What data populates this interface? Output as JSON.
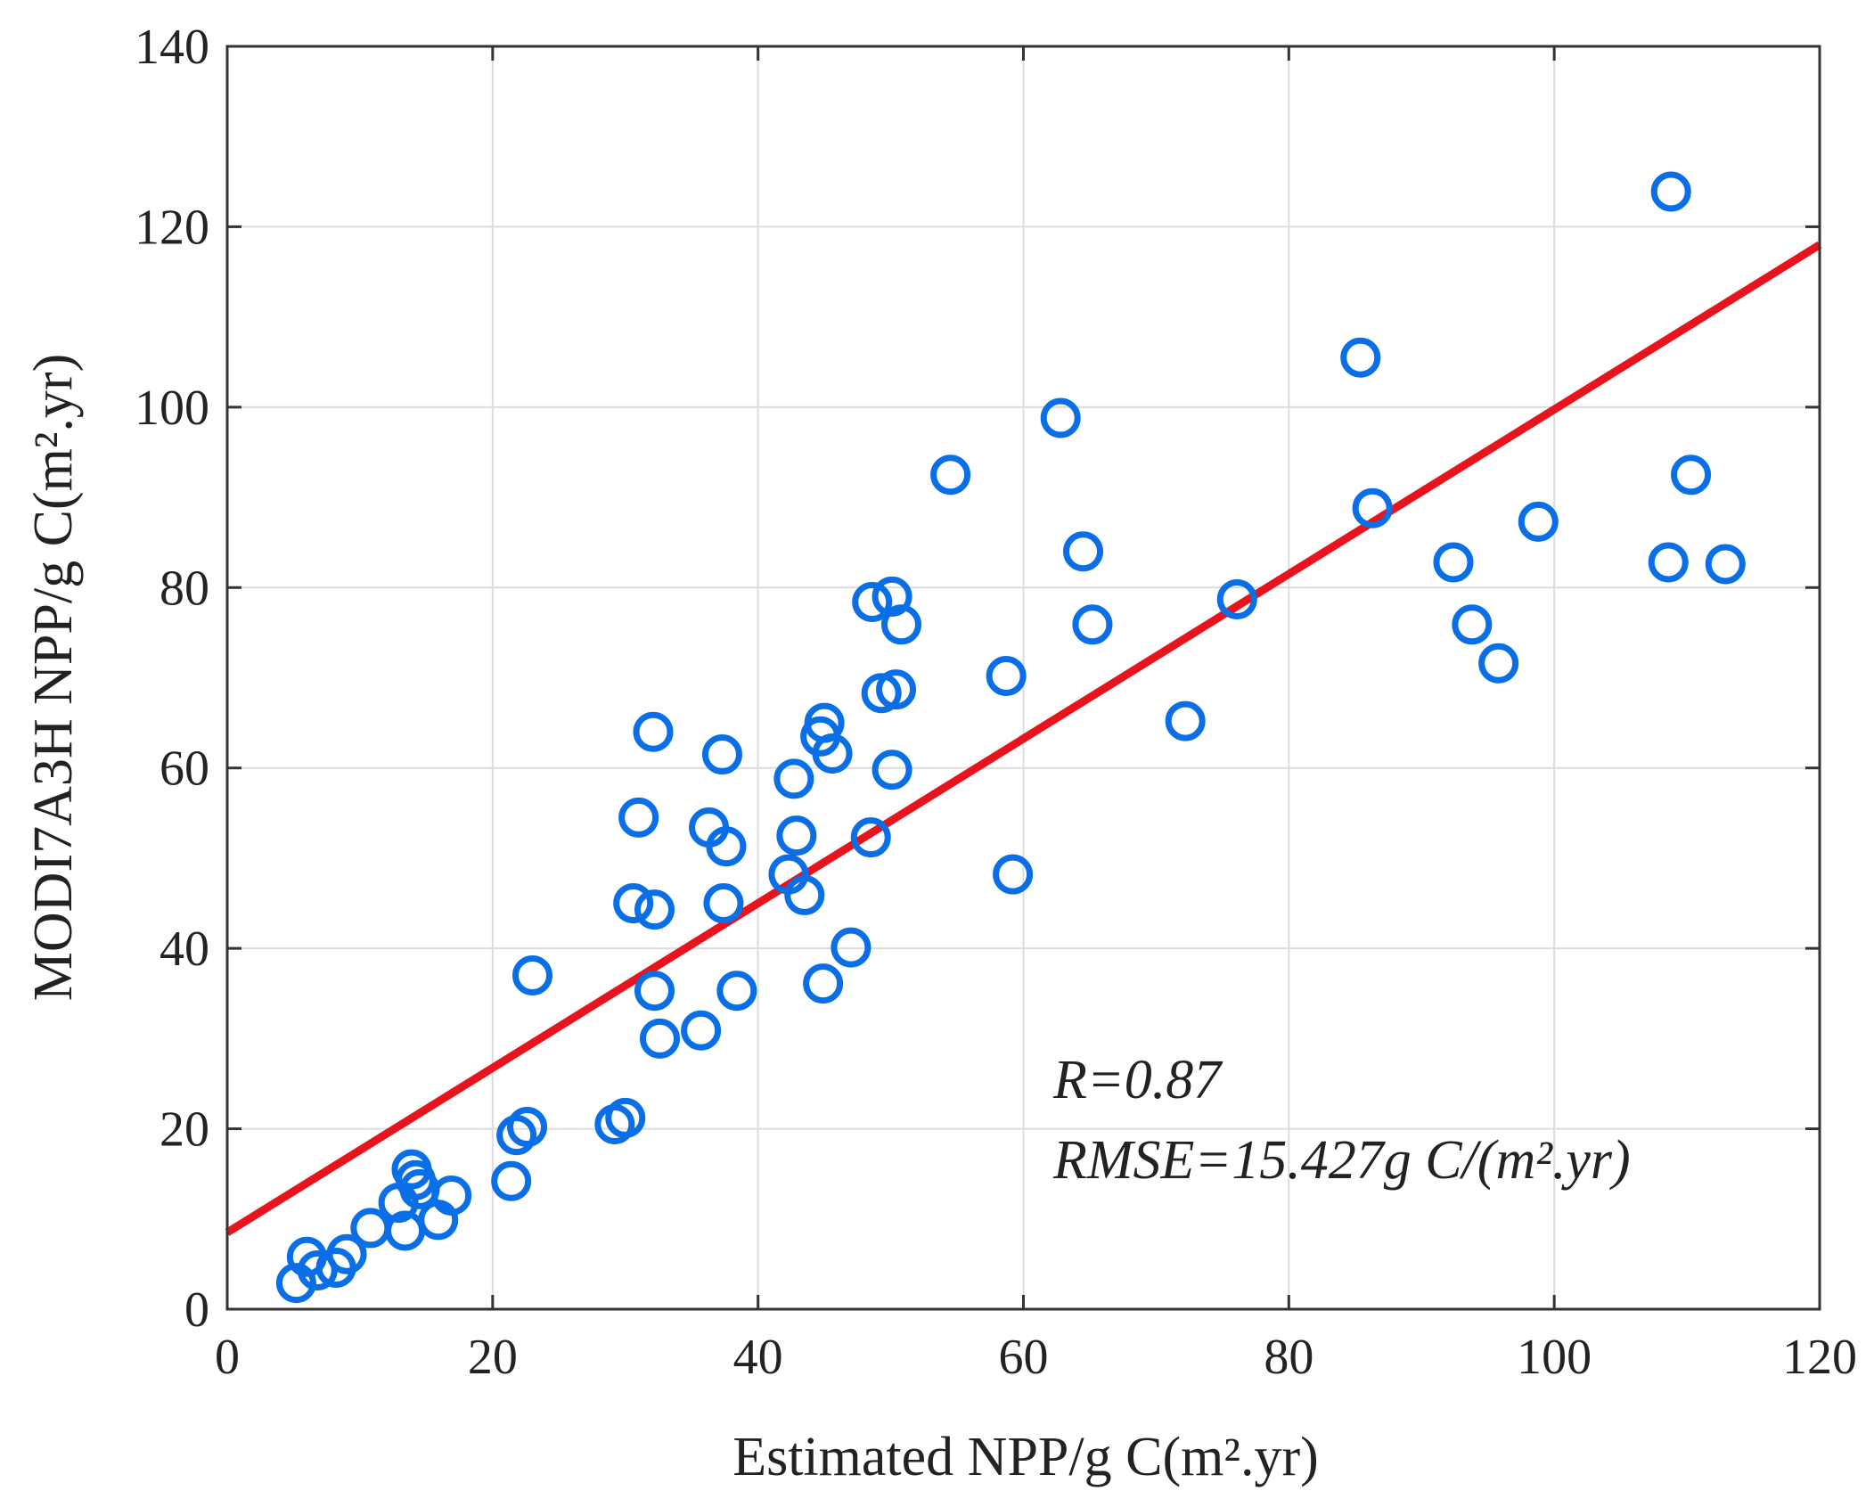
{
  "chart_data": {
    "type": "scatter",
    "title": "",
    "xlabel": "Estimated NPP/g C(m².yr)",
    "ylabel": "MODI7A3H NPP/g C(m².yr)",
    "xlim": [
      0,
      120
    ],
    "ylim": [
      0,
      140
    ],
    "xticks": [
      0,
      20,
      40,
      60,
      80,
      100,
      120
    ],
    "yticks": [
      0,
      20,
      40,
      60,
      80,
      100,
      120,
      140
    ],
    "xtick_labels": [
      "0",
      "20",
      "40",
      "60",
      "80",
      "100",
      "120"
    ],
    "ytick_labels": [
      "0",
      "20",
      "40",
      "60",
      "80",
      "100",
      "120",
      "140"
    ],
    "grid": true,
    "colors": {
      "points": "#0a6fe6",
      "fit_line": "#e8131c",
      "grid": "#dcdcdc",
      "axes": "#333333"
    },
    "series": [
      {
        "name": "samples",
        "marker": "circle-open",
        "points": [
          {
            "x": 5.2,
            "y": 2.9
          },
          {
            "x": 6.0,
            "y": 5.8
          },
          {
            "x": 6.8,
            "y": 4.3
          },
          {
            "x": 8.2,
            "y": 4.6
          },
          {
            "x": 9.0,
            "y": 6.1
          },
          {
            "x": 10.8,
            "y": 9.0
          },
          {
            "x": 12.9,
            "y": 11.8
          },
          {
            "x": 13.4,
            "y": 8.7
          },
          {
            "x": 13.9,
            "y": 15.5
          },
          {
            "x": 14.2,
            "y": 14.3
          },
          {
            "x": 14.5,
            "y": 13.3
          },
          {
            "x": 15.9,
            "y": 9.9
          },
          {
            "x": 16.9,
            "y": 12.6
          },
          {
            "x": 21.4,
            "y": 14.2
          },
          {
            "x": 21.8,
            "y": 19.3
          },
          {
            "x": 22.6,
            "y": 20.2
          },
          {
            "x": 23.0,
            "y": 37.0
          },
          {
            "x": 29.2,
            "y": 20.5
          },
          {
            "x": 30.0,
            "y": 21.2
          },
          {
            "x": 30.6,
            "y": 45.0
          },
          {
            "x": 31.0,
            "y": 54.5
          },
          {
            "x": 32.1,
            "y": 64.0
          },
          {
            "x": 32.2,
            "y": 44.3
          },
          {
            "x": 32.2,
            "y": 35.3
          },
          {
            "x": 32.6,
            "y": 30.0
          },
          {
            "x": 35.7,
            "y": 30.9
          },
          {
            "x": 36.3,
            "y": 53.4
          },
          {
            "x": 37.3,
            "y": 61.5
          },
          {
            "x": 37.4,
            "y": 45.0
          },
          {
            "x": 37.6,
            "y": 51.3
          },
          {
            "x": 38.4,
            "y": 35.3
          },
          {
            "x": 42.3,
            "y": 48.2
          },
          {
            "x": 42.7,
            "y": 58.8
          },
          {
            "x": 42.9,
            "y": 52.5
          },
          {
            "x": 43.5,
            "y": 45.9
          },
          {
            "x": 44.7,
            "y": 63.5
          },
          {
            "x": 45.0,
            "y": 65.0
          },
          {
            "x": 44.9,
            "y": 36.1
          },
          {
            "x": 45.6,
            "y": 61.6
          },
          {
            "x": 47.0,
            "y": 40.1
          },
          {
            "x": 48.5,
            "y": 52.3
          },
          {
            "x": 48.6,
            "y": 78.4
          },
          {
            "x": 49.3,
            "y": 68.3
          },
          {
            "x": 50.1,
            "y": 79.0
          },
          {
            "x": 50.1,
            "y": 59.8
          },
          {
            "x": 50.4,
            "y": 68.7
          },
          {
            "x": 50.8,
            "y": 75.9
          },
          {
            "x": 54.5,
            "y": 92.5
          },
          {
            "x": 58.7,
            "y": 70.2
          },
          {
            "x": 59.2,
            "y": 48.2
          },
          {
            "x": 62.8,
            "y": 98.8
          },
          {
            "x": 64.5,
            "y": 84.0
          },
          {
            "x": 65.2,
            "y": 75.9
          },
          {
            "x": 72.2,
            "y": 65.2
          },
          {
            "x": 76.1,
            "y": 78.7
          },
          {
            "x": 85.4,
            "y": 105.5
          },
          {
            "x": 86.3,
            "y": 88.8
          },
          {
            "x": 92.4,
            "y": 82.8
          },
          {
            "x": 93.8,
            "y": 75.9
          },
          {
            "x": 95.8,
            "y": 71.6
          },
          {
            "x": 98.8,
            "y": 87.3
          },
          {
            "x": 108.6,
            "y": 82.8
          },
          {
            "x": 108.8,
            "y": 123.9
          },
          {
            "x": 110.3,
            "y": 92.5
          },
          {
            "x": 112.9,
            "y": 82.6
          }
        ]
      }
    ],
    "fit_line": {
      "x": [
        0,
        120
      ],
      "y": [
        8.5,
        118.0
      ]
    },
    "annotations": [
      {
        "text": "R=0.87"
      },
      {
        "text": "RMSE=15.427g C/(m².yr)"
      }
    ]
  }
}
